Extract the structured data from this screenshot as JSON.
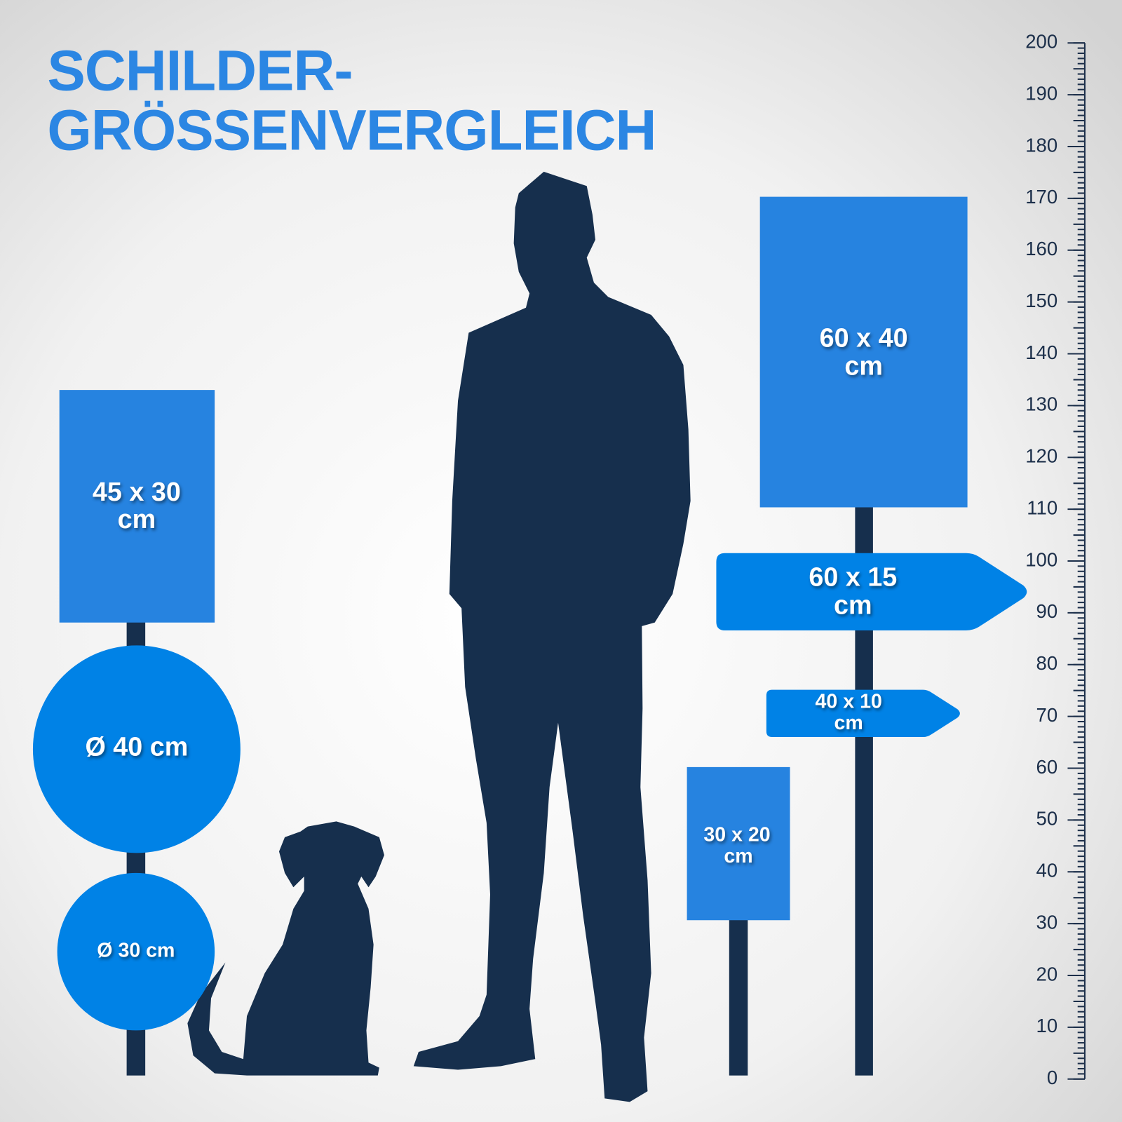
{
  "header": {
    "title_lines": [
      "SCHILDER-",
      "GRÖSSENVERGLEICH"
    ]
  },
  "signs": [
    {
      "size": "45 x 30",
      "unit": "cm"
    },
    {
      "label": "Ø 40 cm"
    },
    {
      "label": "Ø 30 cm"
    },
    {
      "size": "60 x 40",
      "unit": "cm"
    },
    {
      "size": "60 x 15",
      "unit": "cm"
    },
    {
      "size": "40 x 10",
      "unit": "cm"
    },
    {
      "size": "30 x 20",
      "unit": "cm"
    }
  ],
  "ruler": {
    "ticks": [
      0,
      10,
      20,
      30,
      40,
      50,
      60,
      70,
      80,
      90,
      100,
      110,
      120,
      130,
      140,
      150,
      160,
      170,
      180,
      190,
      200
    ]
  }
}
